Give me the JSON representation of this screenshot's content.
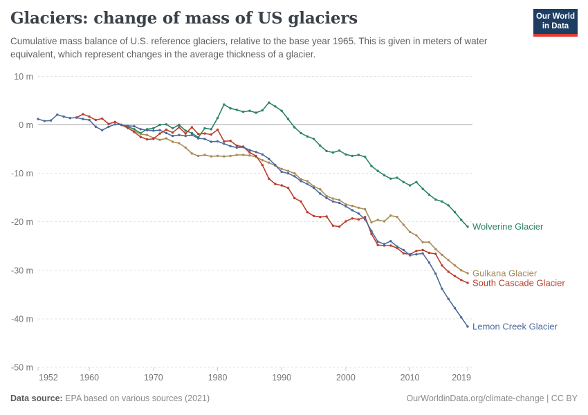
{
  "header": {
    "title": "Glaciers: change of mass of US glaciers",
    "subtitle": "Cumulative mass balance of U.S. reference glaciers, relative to the base year 1965. This is given in meters of water equivalent, which represent changes in the average thickness of a glacier."
  },
  "logo": {
    "line1": "Our World",
    "line2": "in Data"
  },
  "footer": {
    "source_label": "Data source:",
    "source_text": " EPA based on various sources (2021)",
    "link_text": "OurWorldinData.org/climate-change | CC BY"
  },
  "colors": {
    "grid": "#E2E2E2",
    "zero_line": "#A3A3A3",
    "axis_tick": "#C9C9C9",
    "axis_text": "#757575",
    "title_text": "#3A4149",
    "subtitle_text": "#606060",
    "logo_bg": "#1D3D63",
    "logo_stripe": "#DC3E32"
  },
  "chart_data": {
    "type": "line",
    "title": "Glaciers: change of mass of US glaciers",
    "subtitle": "Cumulative mass balance of U.S. reference glaciers, relative to the base year 1965. This is given in meters of water equivalent, which represent changes in the average thickness of a glacier.",
    "xlabel": "",
    "ylabel": "meters of water equivalent",
    "base_year": 1965,
    "xlim": [
      1952,
      2019
    ],
    "ylim": [
      -50,
      10
    ],
    "grid": "horizontal-dashed",
    "legend_position": "end-of-line-labels",
    "x_ticks": [
      1952,
      1960,
      1970,
      1980,
      1990,
      2000,
      2010,
      2019
    ],
    "y_ticks": [
      {
        "value": 10,
        "label": "10 m"
      },
      {
        "value": 0,
        "label": "0 m"
      },
      {
        "value": -10,
        "label": "-10 m"
      },
      {
        "value": -20,
        "label": "-20 m"
      },
      {
        "value": -30,
        "label": "-30 m"
      },
      {
        "value": -40,
        "label": "-40 m"
      },
      {
        "value": -50,
        "label": "-50 m"
      }
    ],
    "series": [
      {
        "name": "Wolverine Glacier",
        "color": "#2C8465",
        "start_year": 1965,
        "values": [
          0.0,
          -0.4,
          -0.9,
          -1.7,
          -0.9,
          -0.7,
          0.0,
          0.1,
          -0.7,
          0.0,
          -1.2,
          -1.7,
          -2.6,
          -0.7,
          -0.9,
          1.4,
          4.2,
          3.4,
          3.1,
          2.7,
          2.9,
          2.5,
          3.0,
          4.6,
          3.8,
          2.9,
          1.2,
          -0.5,
          -1.7,
          -2.4,
          -2.9,
          -4.3,
          -5.4,
          -5.7,
          -5.3,
          -6.1,
          -6.4,
          -6.2,
          -6.6,
          -8.5,
          -9.5,
          -10.4,
          -11.1,
          -10.9,
          -11.8,
          -12.5,
          -11.8,
          -13.2,
          -14.4,
          -15.4,
          -15.8,
          -16.6,
          -18.0,
          -19.6,
          -21.0
        ]
      },
      {
        "name": "Gulkana Glacier",
        "color": "#A98C5A",
        "start_year": 1965,
        "values": [
          0.0,
          -0.7,
          -1.3,
          -1.9,
          -2.1,
          -2.7,
          -3.1,
          -2.8,
          -3.5,
          -3.8,
          -4.7,
          -5.9,
          -6.4,
          -6.2,
          -6.5,
          -6.4,
          -6.5,
          -6.4,
          -6.2,
          -6.2,
          -6.3,
          -6.6,
          -7.3,
          -7.8,
          -8.4,
          -9.1,
          -9.5,
          -10.0,
          -11.2,
          -11.6,
          -12.7,
          -13.3,
          -14.7,
          -15.2,
          -15.5,
          -16.4,
          -16.7,
          -17.1,
          -17.4,
          -20.1,
          -19.6,
          -19.9,
          -18.7,
          -19.0,
          -20.6,
          -22.1,
          -22.8,
          -24.2,
          -24.2,
          -25.6,
          -26.8,
          -27.9,
          -29.0,
          -30.0,
          -30.6
        ]
      },
      {
        "name": "South Cascade Glacier",
        "color": "#BC3D2C",
        "start_year": 1958,
        "values": [
          1.5,
          2.2,
          1.7,
          1.0,
          1.3,
          0.2,
          0.6,
          0.0,
          -0.6,
          -1.5,
          -2.5,
          -3.0,
          -2.9,
          -1.8,
          -1.0,
          -1.6,
          -0.5,
          -1.8,
          -0.5,
          -1.9,
          -1.8,
          -2.0,
          -1.0,
          -3.4,
          -3.3,
          -4.3,
          -4.5,
          -5.7,
          -6.4,
          -8.3,
          -11.1,
          -12.2,
          -12.5,
          -13.0,
          -15.1,
          -15.8,
          -18.0,
          -18.8,
          -19.0,
          -18.9,
          -20.8,
          -21.0,
          -19.9,
          -19.3,
          -19.5,
          -19.0,
          -22.5,
          -24.8,
          -24.9,
          -24.9,
          -25.4,
          -26.5,
          -26.7,
          -26.0,
          -25.8,
          -26.4,
          -26.6,
          -29.0,
          -30.3,
          -31.2,
          -32.0,
          -32.6
        ]
      },
      {
        "name": "Lemon Creek Glacier",
        "color": "#4C6A9C",
        "start_year": 1952,
        "values": [
          1.2,
          0.8,
          0.9,
          2.1,
          1.7,
          1.4,
          1.5,
          1.2,
          1.0,
          -0.4,
          -1.1,
          -0.4,
          0.1,
          0.0,
          -0.2,
          -0.3,
          -0.9,
          -1.1,
          -1.2,
          -1.1,
          -1.7,
          -2.3,
          -2.1,
          -2.3,
          -2.1,
          -2.8,
          -2.9,
          -3.5,
          -3.4,
          -3.9,
          -4.4,
          -4.7,
          -4.6,
          -5.2,
          -5.6,
          -6.1,
          -7.0,
          -8.3,
          -9.7,
          -10.0,
          -10.6,
          -11.6,
          -12.2,
          -13.0,
          -14.2,
          -15.1,
          -15.8,
          -16.1,
          -16.8,
          -17.6,
          -18.3,
          -19.5,
          -21.9,
          -24.1,
          -24.6,
          -24.0,
          -25.1,
          -25.8,
          -26.9,
          -26.7,
          -26.5,
          -28.4,
          -30.7,
          -33.8,
          -35.9,
          -37.8,
          -39.7,
          -41.6
        ]
      }
    ]
  }
}
